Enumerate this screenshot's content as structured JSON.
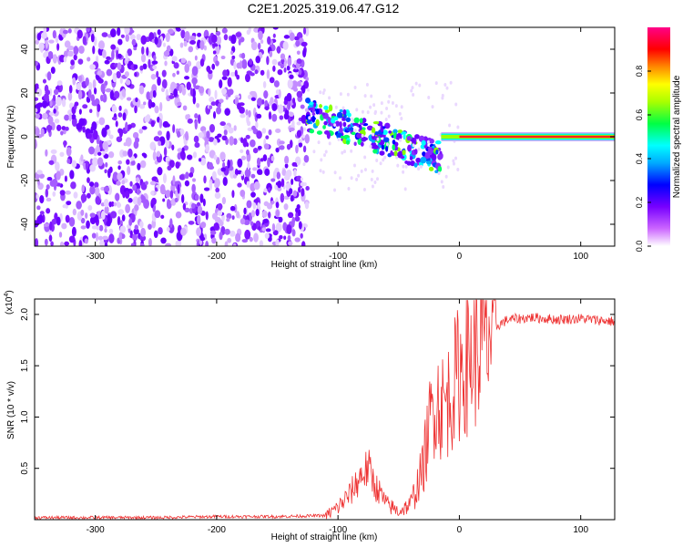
{
  "title": "C2E1.2025.319.06.47.G12",
  "chart_data": [
    {
      "type": "heatmap",
      "title": "C2E1.2025.319.06.47.G12",
      "xlabel": "Height of straight line (km)",
      "ylabel": "Frequency (Hz)",
      "xlim": [
        -350,
        128
      ],
      "ylim": [
        -50,
        50
      ],
      "xticks": [
        -300,
        -200,
        -100,
        0,
        100
      ],
      "xtick_labels": [
        "-300",
        "-200",
        "-100",
        "0",
        "100"
      ],
      "yticks": [
        -40,
        -20,
        0,
        20,
        40
      ],
      "ytick_labels": [
        "-40",
        "-20",
        "0",
        "20",
        "40"
      ],
      "colorbar": {
        "label": "Normalized spectral amplitude",
        "range": [
          0,
          1
        ],
        "ticks": [
          0.0,
          0.2,
          0.4,
          0.6,
          0.8
        ],
        "tick_labels": [
          "0.0",
          "0.2",
          "0.4",
          "0.6",
          "0.8"
        ],
        "colors": [
          "#ffffff",
          "#8800ff",
          "#0000ff",
          "#00ffff",
          "#00ff00",
          "#ffff00",
          "#ff8800",
          "#ff0000",
          "#ff00ff"
        ]
      },
      "regions": [
        {
          "name": "noise",
          "x": [
            -350,
            -125
          ],
          "freq": [
            -50,
            50
          ],
          "amplitude": 0.15
        },
        {
          "name": "transition",
          "x": [
            -125,
            -15
          ],
          "freq_center": [
            10,
            -10
          ],
          "amplitude": 0.4
        },
        {
          "name": "carrier",
          "x": [
            0,
            128
          ],
          "freq": [
            0,
            0
          ],
          "amplitude": 0.9
        }
      ]
    },
    {
      "type": "line",
      "xlabel": "Height of straight line (km)",
      "ylabel": "SNR (10 * v/v)",
      "y_multiplier": "(x10",
      "y_multiplier_exp": "4",
      "y_multiplier_close": ")",
      "xlim": [
        -350,
        128
      ],
      "ylim": [
        0,
        2.15
      ],
      "xticks": [
        -300,
        -200,
        -100,
        0,
        100
      ],
      "xtick_labels": [
        "-300",
        "-200",
        "-100",
        "0",
        "100"
      ],
      "yticks": [
        0.5,
        1.0,
        1.5,
        2.0
      ],
      "ytick_labels": [
        "0.5",
        "1.0",
        "1.5",
        "2.0"
      ],
      "series": [
        {
          "name": "SNR",
          "color": "#ee3333",
          "x": [
            -350,
            -300,
            -250,
            -200,
            -150,
            -110,
            -100,
            -90,
            -80,
            -75,
            -70,
            -60,
            -50,
            -40,
            -30,
            -25,
            -20,
            -15,
            -10,
            -5,
            0,
            10,
            20,
            30,
            40,
            60,
            80,
            100,
            128
          ],
          "values": [
            0.02,
            0.02,
            0.02,
            0.03,
            0.03,
            0.04,
            0.12,
            0.25,
            0.45,
            0.5,
            0.35,
            0.15,
            0.08,
            0.15,
            0.5,
            0.9,
            1.2,
            1.1,
            1.15,
            1.3,
            1.45,
            1.6,
            1.75,
            1.88,
            1.95,
            1.97,
            1.95,
            1.96,
            1.93
          ]
        }
      ]
    }
  ]
}
